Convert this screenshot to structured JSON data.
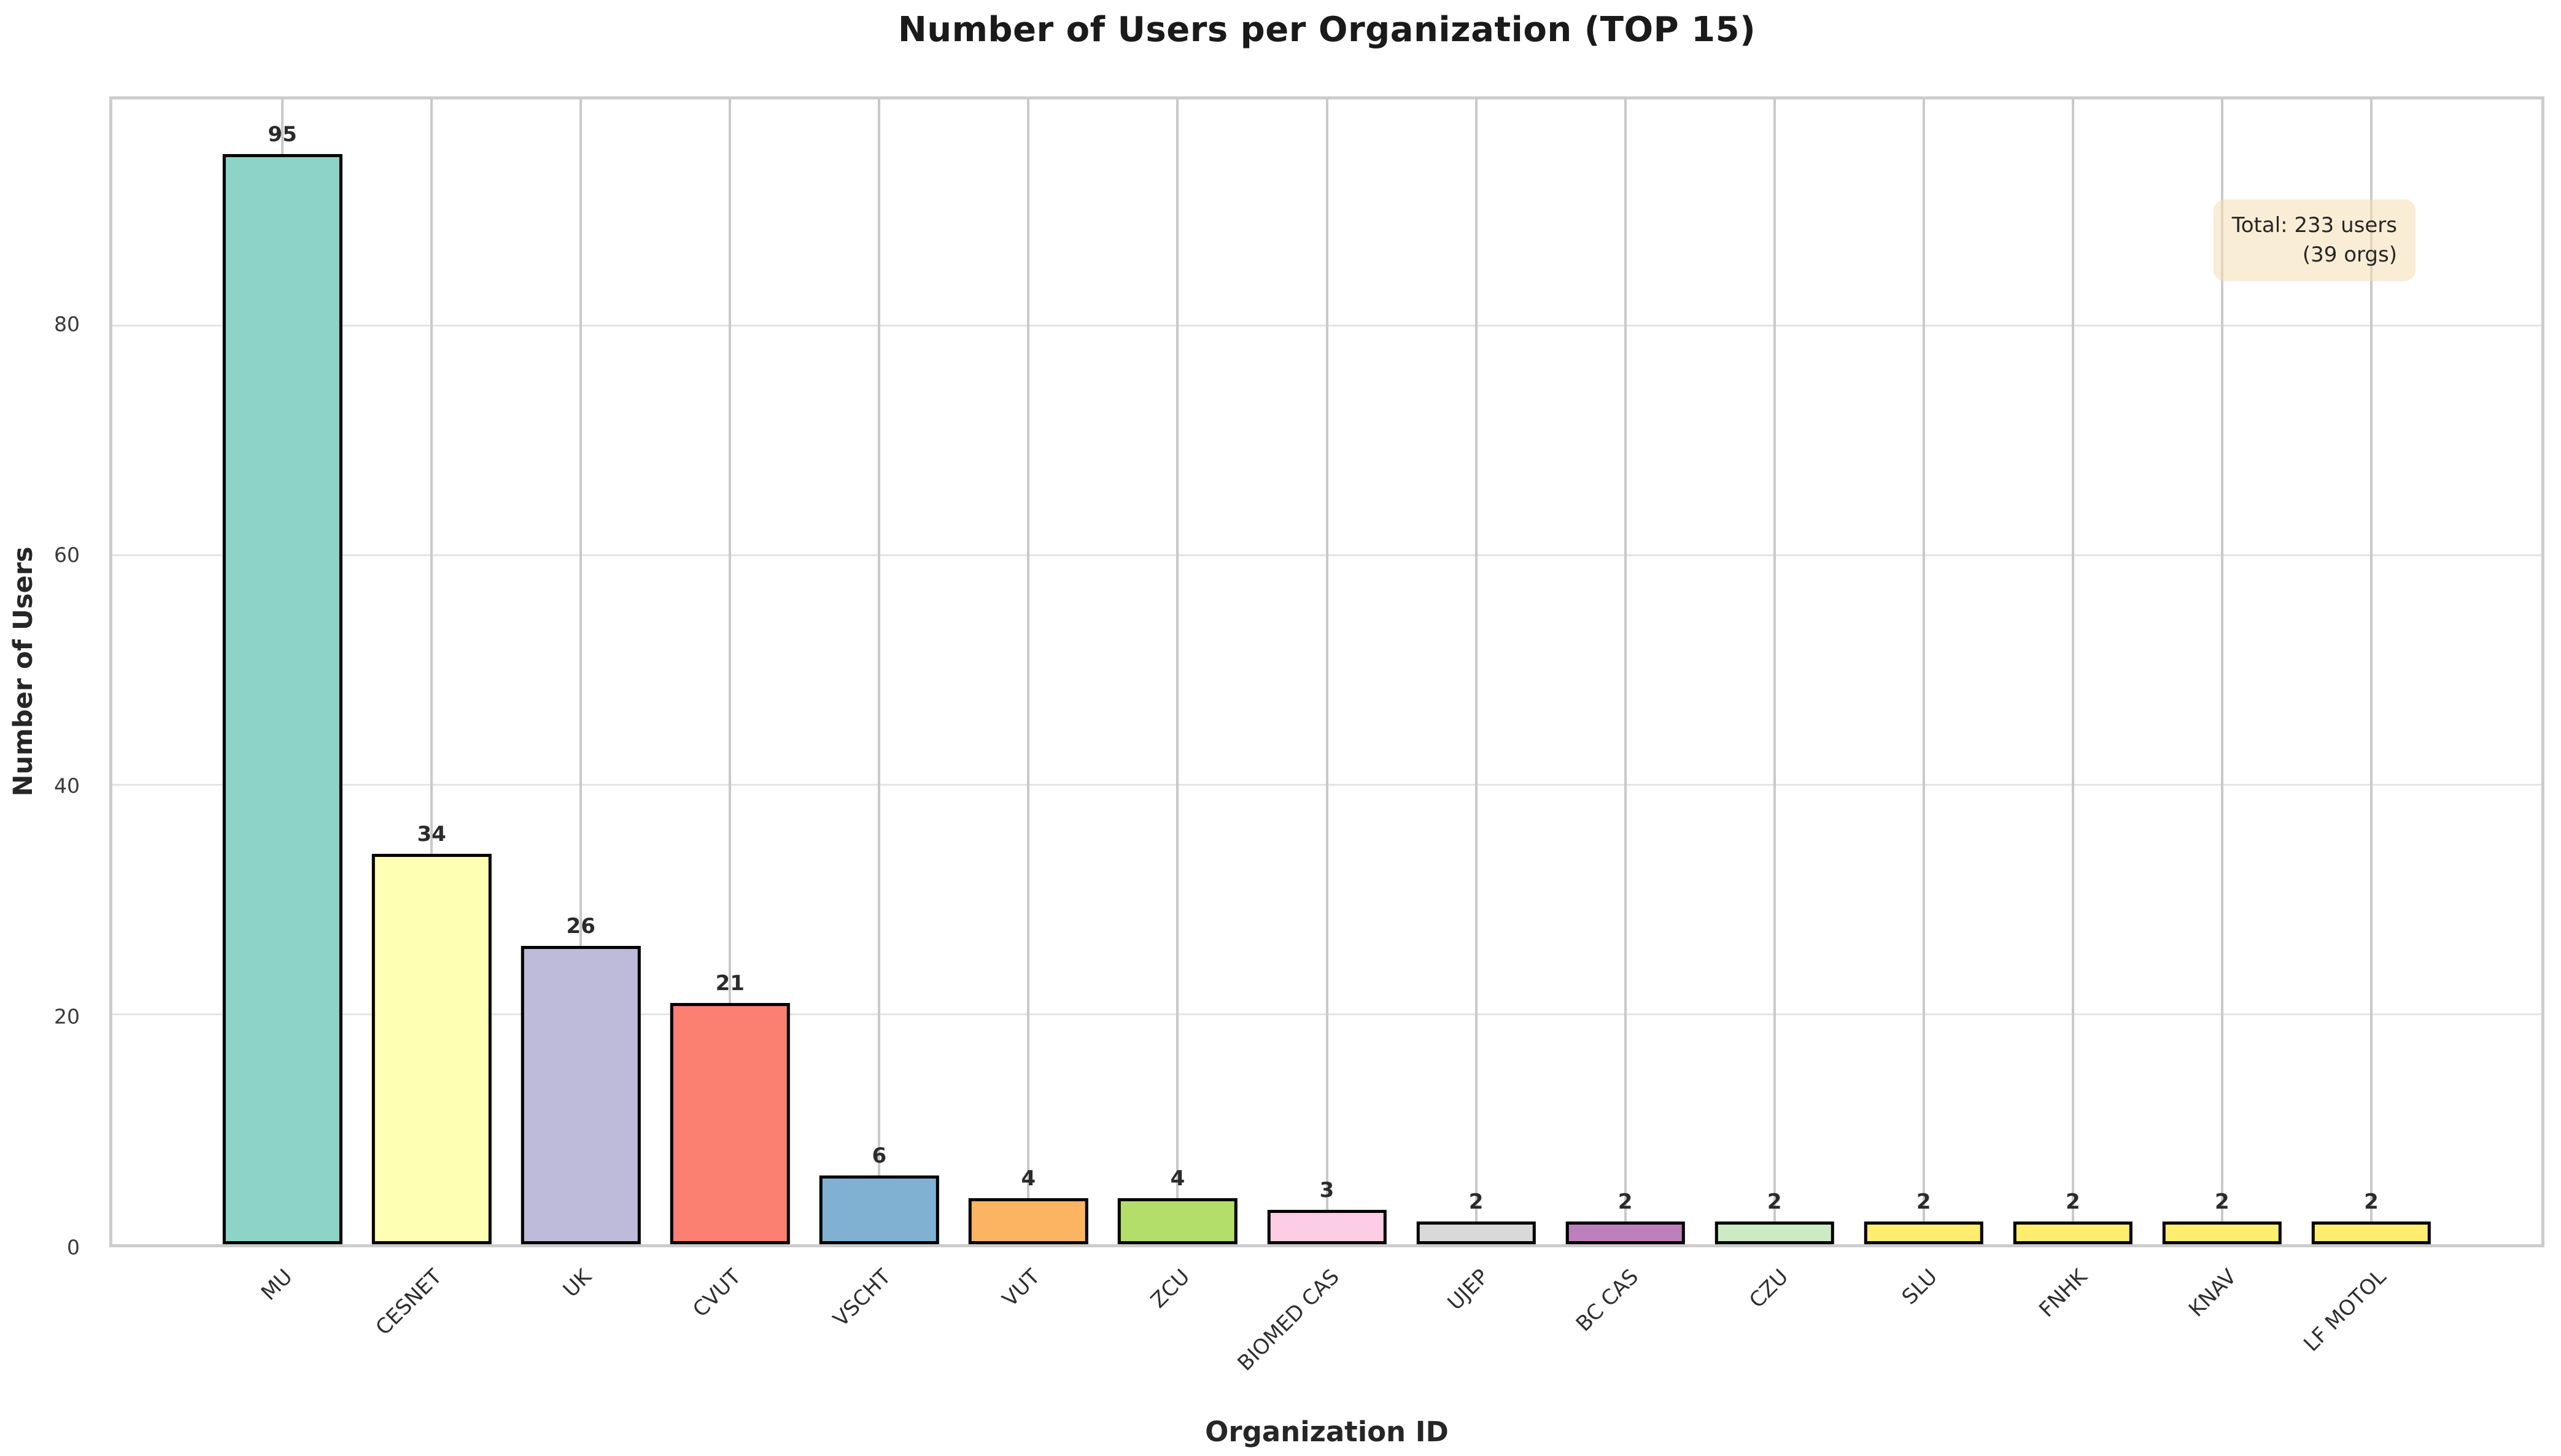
{
  "title": "Number of Users per Organization (TOP 15)",
  "annotation": {
    "line1": "Total: 233 users",
    "line2": "(39 orgs)"
  },
  "chart_data": {
    "type": "bar",
    "title": "Number of Users per Organization (TOP 15)",
    "xlabel": "Organization ID",
    "ylabel": "Number of Users",
    "categories": [
      "MU",
      "CESNET",
      "UK",
      "CVUT",
      "VSCHT",
      "VUT",
      "ZCU",
      "BIOMED CAS",
      "UJEP",
      "BC CAS",
      "CZU",
      "SLU",
      "FNHK",
      "KNAV",
      "LF MOTOL"
    ],
    "values": [
      95,
      34,
      26,
      21,
      6,
      4,
      4,
      3,
      2,
      2,
      2,
      2,
      2,
      2,
      2
    ],
    "bar_colors": [
      "#8dd3c7",
      "#ffffb3",
      "#bebada",
      "#fb8072",
      "#80b1d3",
      "#fdb462",
      "#b3de69",
      "#fccde5",
      "#d9d9d9",
      "#bc80bd",
      "#ccebc5",
      "#ffed6f",
      "#ffed6f",
      "#ffed6f",
      "#ffed6f"
    ],
    "bar_edge_color": "#000000",
    "yticks": [
      0,
      20,
      40,
      60,
      80
    ],
    "ylim": [
      0,
      99.75
    ],
    "grid": true,
    "legend": "none",
    "annotation_text": "Total: 233 users (39 orgs)",
    "annotation_bg": "#f5deb3"
  }
}
